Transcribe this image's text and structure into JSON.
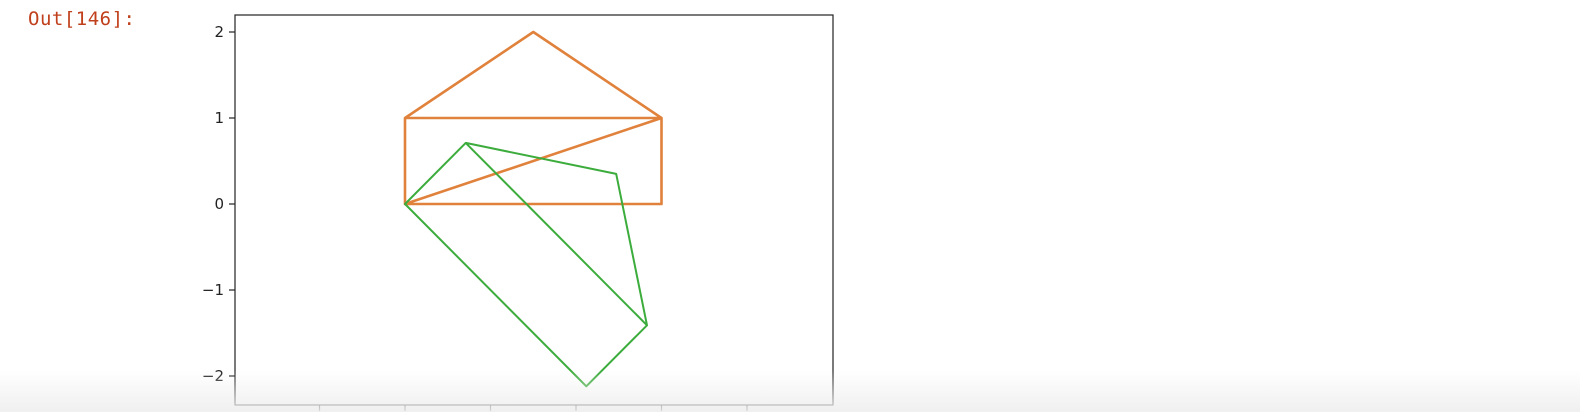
{
  "cell": {
    "prompt": "Out[146]:"
  },
  "chart_data": {
    "type": "line",
    "title": "",
    "xlabel": "",
    "ylabel": "",
    "xlim": [
      -2,
      5
    ],
    "ylim": [
      -2.2,
      2.2
    ],
    "grid": false,
    "yticks": [
      {
        "value": 2,
        "label": "2"
      },
      {
        "value": 1,
        "label": "1"
      },
      {
        "value": 0,
        "label": "0"
      },
      {
        "value": -1,
        "label": "−1"
      },
      {
        "value": -2,
        "label": "−2"
      }
    ],
    "xticks": [
      -1,
      0,
      1,
      2,
      3,
      4
    ],
    "series": [
      {
        "color": "#e0823c",
        "x": [
          0,
          3,
          3,
          0,
          0,
          3,
          1.5,
          0
        ],
        "y": [
          0,
          0,
          1,
          1,
          0,
          1,
          2,
          1
        ]
      },
      {
        "color": "#3cac3c",
        "x": [
          0,
          0.71,
          2.83,
          2.12,
          0,
          0.71,
          2.47,
          2.83
        ],
        "y": [
          0,
          0.71,
          -1.41,
          -2.12,
          0,
          0.71,
          0.35,
          -1.41
        ]
      }
    ]
  }
}
